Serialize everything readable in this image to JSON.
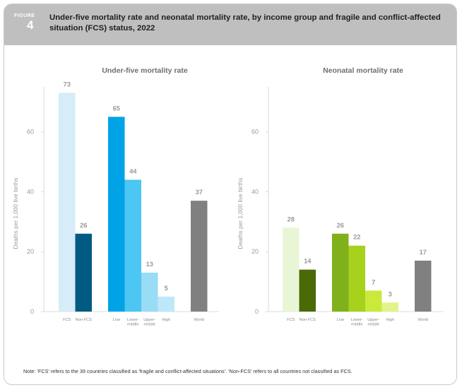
{
  "figure": {
    "label": "FIGURE",
    "number": "4",
    "title": "Under-five mortality rate and neonatal mortality rate, by income group and fragile and conflict-affected situation (FCS) status, 2022"
  },
  "note": "Note: 'FCS' refers to the 39 countries classified as 'fragile and conflict-affected situations'. 'Non-FCS' refers to all countries not classified as FCS.",
  "chart_data": [
    {
      "type": "bar",
      "title": "Under-five mortality rate",
      "ylabel": "Deaths per 1,000 live births",
      "ylim": [
        0,
        75
      ],
      "yticks": [
        0,
        20,
        40,
        60
      ],
      "grid": false,
      "bars": [
        {
          "label": [
            "FCS"
          ],
          "value": 73,
          "color": "#d6ecf8",
          "group": 0
        },
        {
          "label": [
            "Non-FCS"
          ],
          "value": 26,
          "color": "#005a82",
          "group": 0
        },
        {
          "label": [
            "Low"
          ],
          "value": 65,
          "color": "#00a3e6",
          "group": 1
        },
        {
          "label": [
            "Lower-",
            "middle"
          ],
          "value": 44,
          "color": "#4cc6f2",
          "group": 1
        },
        {
          "label": [
            "Upper-",
            "middle"
          ],
          "value": 13,
          "color": "#99dcf6",
          "group": 1
        },
        {
          "label": [
            "High"
          ],
          "value": 5,
          "color": "#bde8fa",
          "group": 1
        },
        {
          "label": [
            "World"
          ],
          "value": 37,
          "color": "#808080",
          "group": 2
        }
      ]
    },
    {
      "type": "bar",
      "title": "Neonatal mortality rate",
      "ylabel": "Deaths per 1,000 live births",
      "ylim": [
        0,
        75
      ],
      "yticks": [
        0,
        20,
        40,
        60
      ],
      "grid": false,
      "bars": [
        {
          "label": [
            "FCS"
          ],
          "value": 28,
          "color": "#e9f6d6",
          "group": 0
        },
        {
          "label": [
            "Non-FCS"
          ],
          "value": 14,
          "color": "#4a6a08",
          "group": 0
        },
        {
          "label": [
            "Low"
          ],
          "value": 26,
          "color": "#80b01a",
          "group": 1
        },
        {
          "label": [
            "Lower-",
            "middle"
          ],
          "value": 22,
          "color": "#a6d11c",
          "group": 1
        },
        {
          "label": [
            "Upper-",
            "middle"
          ],
          "value": 7,
          "color": "#c9ea3a",
          "group": 1
        },
        {
          "label": [
            "High"
          ],
          "value": 3,
          "color": "#e1f48a",
          "group": 1
        },
        {
          "label": [
            "World"
          ],
          "value": 17,
          "color": "#808080",
          "group": 2
        }
      ]
    }
  ]
}
